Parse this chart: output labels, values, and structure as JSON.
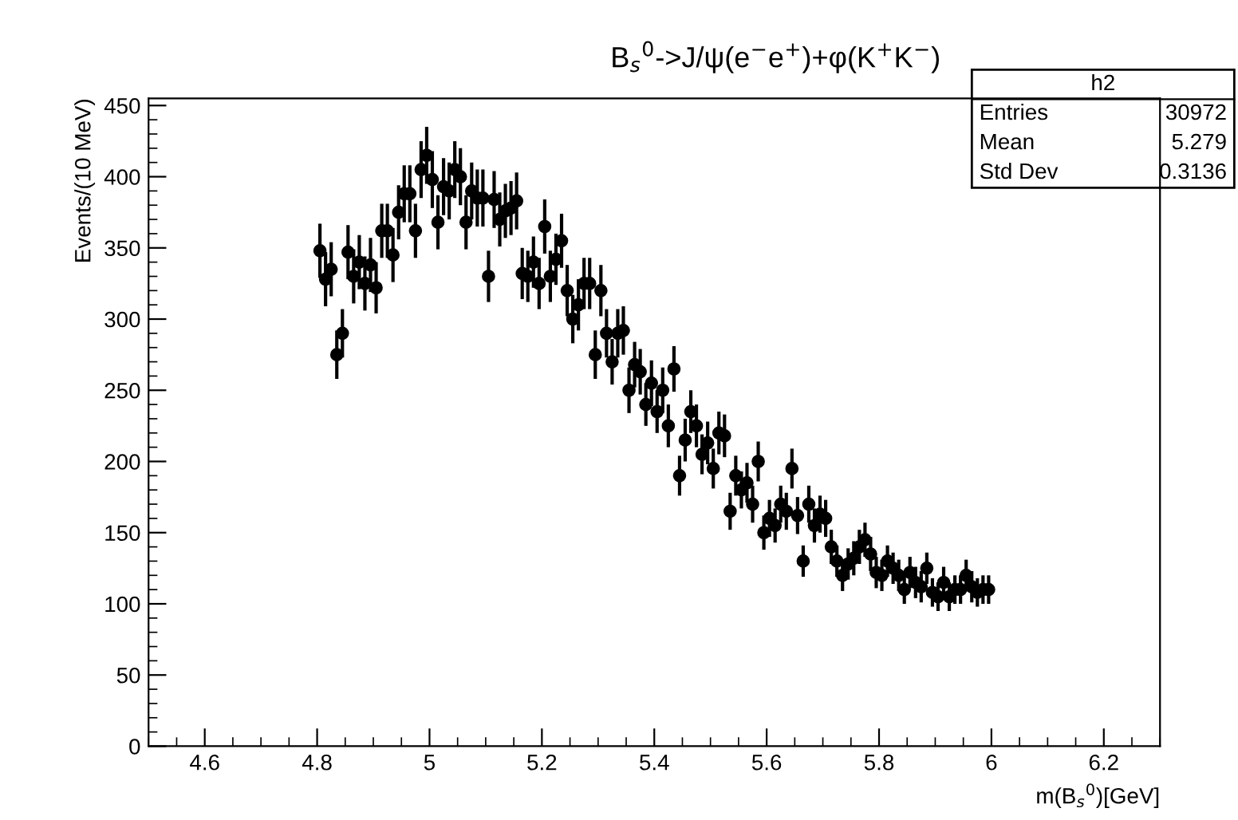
{
  "chart_data": {
    "type": "scatter",
    "title": "B$_{s}$$^{0}$->J/ψ(e$^{−}$e$^{+}$)+φ(K$^{+}$K$^{−}$)",
    "xlabel": "m(B$_{s}$$^{0}$)[GeV]",
    "ylabel": "Events/(10 MeV)",
    "xlim": [
      4.5,
      6.3
    ],
    "ylim": [
      0,
      455
    ],
    "xticks": [
      4.6,
      4.8,
      5,
      5.2,
      5.4,
      5.6,
      5.8,
      6,
      6.2
    ],
    "yticks": [
      0,
      50,
      100,
      150,
      200,
      250,
      300,
      350,
      400,
      450
    ],
    "grid": false,
    "marker": "circle",
    "legend": false,
    "annotations": [
      "h2",
      "Entries",
      "30972",
      "Mean",
      "5.279",
      "Std Dev",
      "0.3136"
    ],
    "series": [
      {
        "color": "#000000",
        "x": [
          4.805,
          4.815,
          4.825,
          4.835,
          4.845,
          4.855,
          4.865,
          4.875,
          4.885,
          4.895,
          4.905,
          4.915,
          4.925,
          4.935,
          4.945,
          4.955,
          4.965,
          4.975,
          4.985,
          4.995,
          5.005,
          5.015,
          5.025,
          5.035,
          5.045,
          5.055,
          5.065,
          5.075,
          5.085,
          5.095,
          5.105,
          5.115,
          5.125,
          5.135,
          5.145,
          5.155,
          5.165,
          5.175,
          5.185,
          5.195,
          5.205,
          5.215,
          5.225,
          5.235,
          5.245,
          5.255,
          5.265,
          5.275,
          5.285,
          5.295,
          5.305,
          5.315,
          5.325,
          5.335,
          5.345,
          5.355,
          5.365,
          5.375,
          5.385,
          5.395,
          5.405,
          5.415,
          5.425,
          5.435,
          5.445,
          5.455,
          5.465,
          5.475,
          5.485,
          5.495,
          5.505,
          5.515,
          5.525,
          5.535,
          5.545,
          5.555,
          5.565,
          5.575,
          5.585,
          5.595,
          5.605,
          5.615,
          5.625,
          5.635,
          5.645,
          5.655,
          5.665,
          5.675,
          5.685,
          5.695,
          5.705,
          5.715,
          5.725,
          5.735,
          5.745,
          5.755,
          5.765,
          5.775,
          5.785,
          5.795,
          5.805,
          5.815,
          5.825,
          5.835,
          5.845,
          5.855,
          5.865,
          5.875,
          5.885,
          5.895,
          5.905,
          5.915,
          5.925,
          5.935,
          5.945,
          5.955,
          5.965,
          5.975,
          5.985,
          5.995
        ],
        "values": [
          348,
          328,
          335,
          275,
          290,
          347,
          330,
          340,
          325,
          338,
          322,
          362,
          362,
          345,
          375,
          388,
          388,
          362,
          405,
          415,
          398,
          368,
          393,
          390,
          405,
          400,
          368,
          390,
          385,
          385,
          330,
          384,
          370,
          376,
          378,
          383,
          332,
          330,
          340,
          325,
          365,
          330,
          342,
          355,
          320,
          300,
          310,
          325,
          325,
          275,
          320,
          290,
          270,
          290,
          292,
          250,
          268,
          263,
          240,
          255,
          235,
          250,
          225,
          265,
          190,
          215,
          235,
          225,
          205,
          213,
          195,
          220,
          218,
          165,
          190,
          180,
          185,
          170,
          200,
          150,
          160,
          155,
          170,
          165,
          195,
          162,
          130,
          170,
          155,
          163,
          160,
          140,
          130,
          120,
          128,
          132,
          140,
          145,
          135,
          122,
          120,
          130,
          125,
          120,
          110,
          122,
          115,
          112,
          125,
          108,
          105,
          115,
          105,
          110,
          110,
          120,
          112,
          108,
          110,
          110
        ],
        "errors": [
          19,
          19,
          19,
          17,
          17,
          19,
          19,
          19,
          19,
          19,
          18,
          19,
          19,
          19,
          19,
          20,
          20,
          19,
          20,
          20,
          20,
          19,
          20,
          20,
          20,
          20,
          19,
          20,
          20,
          20,
          18,
          20,
          19,
          19,
          19,
          20,
          18,
          18,
          18,
          18,
          19,
          18,
          18,
          19,
          18,
          17,
          18,
          18,
          18,
          17,
          18,
          17,
          16,
          17,
          17,
          16,
          16,
          16,
          15,
          16,
          15,
          16,
          15,
          16,
          14,
          15,
          15,
          15,
          14,
          15,
          14,
          15,
          15,
          13,
          14,
          13,
          14,
          13,
          14,
          12,
          13,
          12,
          13,
          13,
          14,
          13,
          11,
          13,
          12,
          13,
          13,
          12,
          11,
          11,
          11,
          12,
          12,
          12,
          12,
          11,
          11,
          11,
          11,
          11,
          10,
          11,
          11,
          11,
          11,
          10,
          10,
          11,
          10,
          10,
          10,
          11,
          11,
          10,
          10,
          10
        ]
      }
    ]
  }
}
